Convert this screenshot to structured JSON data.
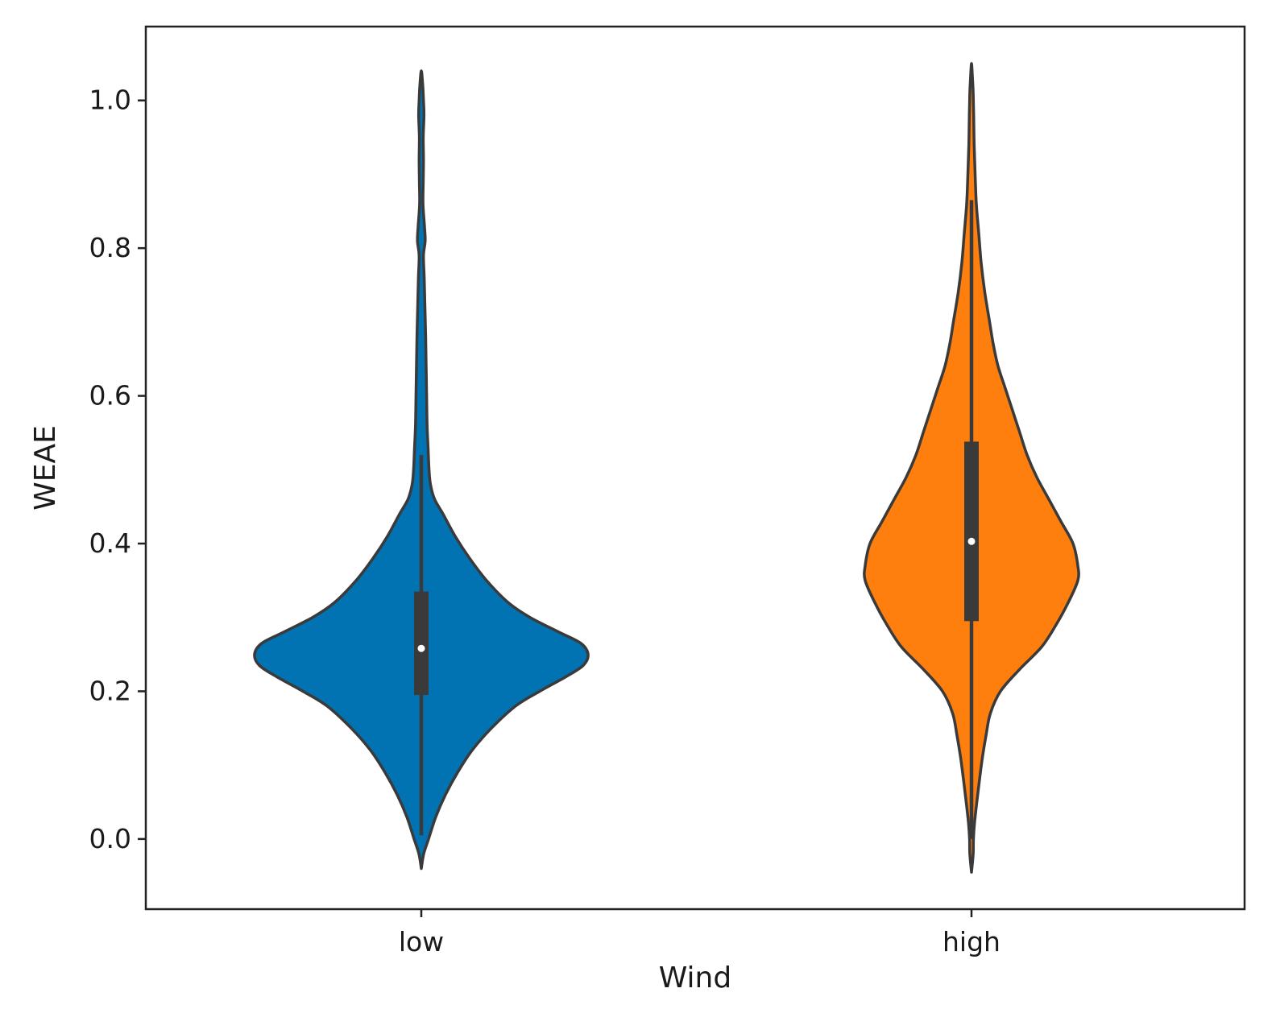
{
  "chart_data": {
    "type": "violin",
    "xlabel": "Wind",
    "ylabel": "WEAE",
    "ylim": [
      -0.095,
      1.1
    ],
    "yticks": [
      0.0,
      0.2,
      0.4,
      0.6,
      0.8,
      1.0
    ],
    "ytick_labels": [
      "0.0",
      "0.2",
      "0.4",
      "0.6",
      "0.8",
      "1.0"
    ],
    "categories": [
      "low",
      "high"
    ],
    "grid": false,
    "series": [
      {
        "category": "low",
        "color": "#0173b2",
        "box": {
          "whisker_low": 0.005,
          "q1": 0.195,
          "median": 0.258,
          "q3": 0.335,
          "whisker_high": 0.52
        },
        "density_profile": [
          [
            -0.04,
            0.0
          ],
          [
            -0.02,
            0.01
          ],
          [
            0.0,
            0.03
          ],
          [
            0.03,
            0.06
          ],
          [
            0.06,
            0.1
          ],
          [
            0.09,
            0.15
          ],
          [
            0.12,
            0.21
          ],
          [
            0.15,
            0.29
          ],
          [
            0.18,
            0.39
          ],
          [
            0.2,
            0.49
          ],
          [
            0.22,
            0.6
          ],
          [
            0.235,
            0.67
          ],
          [
            0.25,
            0.69
          ],
          [
            0.265,
            0.66
          ],
          [
            0.28,
            0.57
          ],
          [
            0.3,
            0.45
          ],
          [
            0.32,
            0.36
          ],
          [
            0.35,
            0.27
          ],
          [
            0.38,
            0.2
          ],
          [
            0.41,
            0.14
          ],
          [
            0.44,
            0.09
          ],
          [
            0.46,
            0.055
          ],
          [
            0.48,
            0.038
          ],
          [
            0.5,
            0.032
          ],
          [
            0.53,
            0.028
          ],
          [
            0.56,
            0.024
          ],
          [
            0.6,
            0.022
          ],
          [
            0.64,
            0.02
          ],
          [
            0.68,
            0.018
          ],
          [
            0.72,
            0.015
          ],
          [
            0.76,
            0.012
          ],
          [
            0.79,
            0.009
          ],
          [
            0.81,
            0.016
          ],
          [
            0.83,
            0.013
          ],
          [
            0.86,
            0.007
          ],
          [
            0.89,
            0.008
          ],
          [
            0.92,
            0.009
          ],
          [
            0.95,
            0.008
          ],
          [
            0.98,
            0.011
          ],
          [
            1.0,
            0.009
          ],
          [
            1.02,
            0.006
          ],
          [
            1.04,
            0.0
          ]
        ]
      },
      {
        "category": "high",
        "color": "#ff7f0e",
        "box": {
          "whisker_low": 0.0,
          "q1": 0.295,
          "median": 0.403,
          "q3": 0.538,
          "whisker_high": 0.865
        },
        "density_profile": [
          [
            -0.045,
            0.0
          ],
          [
            -0.02,
            0.007
          ],
          [
            0.0,
            0.008
          ],
          [
            0.02,
            0.012
          ],
          [
            0.05,
            0.022
          ],
          [
            0.08,
            0.033
          ],
          [
            0.11,
            0.045
          ],
          [
            0.14,
            0.06
          ],
          [
            0.17,
            0.078
          ],
          [
            0.2,
            0.12
          ],
          [
            0.23,
            0.2
          ],
          [
            0.26,
            0.29
          ],
          [
            0.29,
            0.35
          ],
          [
            0.32,
            0.4
          ],
          [
            0.35,
            0.44
          ],
          [
            0.37,
            0.44
          ],
          [
            0.4,
            0.42
          ],
          [
            0.43,
            0.37
          ],
          [
            0.46,
            0.32
          ],
          [
            0.49,
            0.27
          ],
          [
            0.52,
            0.23
          ],
          [
            0.55,
            0.2
          ],
          [
            0.58,
            0.17
          ],
          [
            0.61,
            0.14
          ],
          [
            0.64,
            0.11
          ],
          [
            0.67,
            0.09
          ],
          [
            0.7,
            0.075
          ],
          [
            0.74,
            0.055
          ],
          [
            0.78,
            0.04
          ],
          [
            0.82,
            0.03
          ],
          [
            0.86,
            0.02
          ],
          [
            0.9,
            0.015
          ],
          [
            0.94,
            0.011
          ],
          [
            0.98,
            0.009
          ],
          [
            1.01,
            0.007
          ],
          [
            1.03,
            0.004
          ],
          [
            1.05,
            0.0
          ]
        ]
      }
    ]
  }
}
